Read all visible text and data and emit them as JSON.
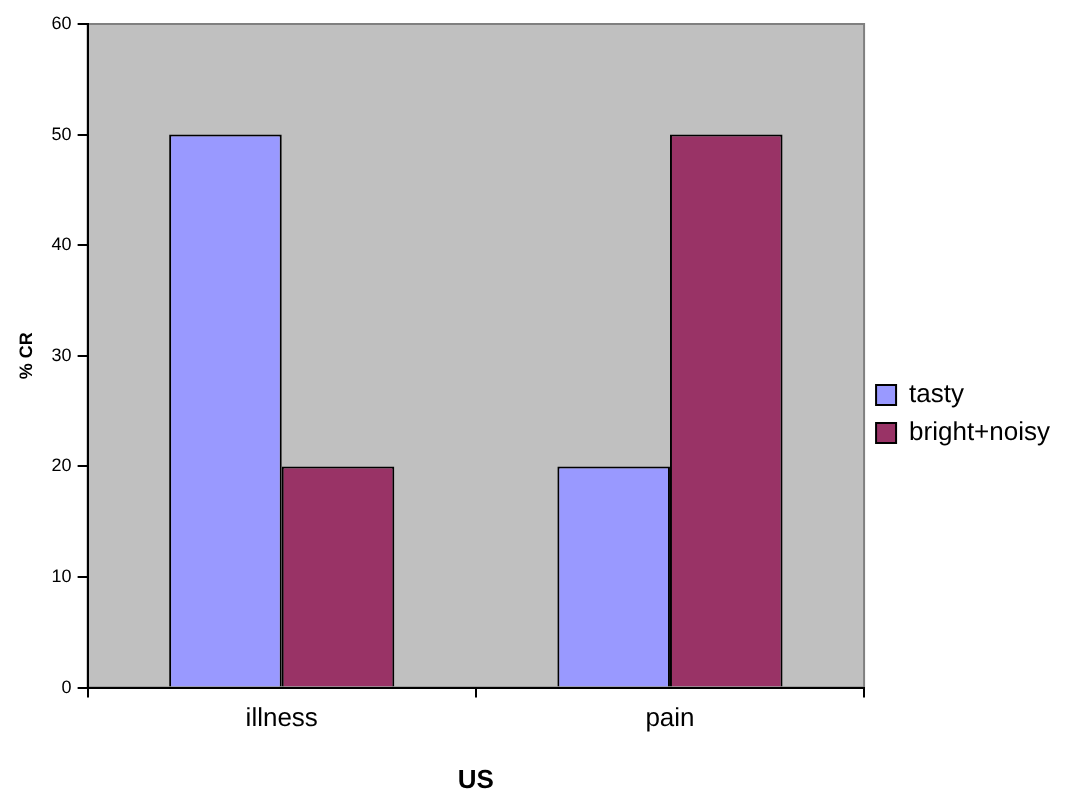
{
  "chart_data": {
    "type": "bar",
    "xlabel": "US",
    "ylabel": "% CR",
    "categories": [
      "illness",
      "pain"
    ],
    "series": [
      {
        "name": "tasty",
        "color": "#9999ff",
        "values": [
          50,
          20
        ]
      },
      {
        "name": "bright+noisy",
        "color": "#993366",
        "values": [
          20,
          50
        ]
      }
    ],
    "ylim": [
      0,
      60
    ],
    "yticks": [
      0,
      10,
      20,
      30,
      40,
      50,
      60
    ],
    "grid": false,
    "legend": "right"
  }
}
